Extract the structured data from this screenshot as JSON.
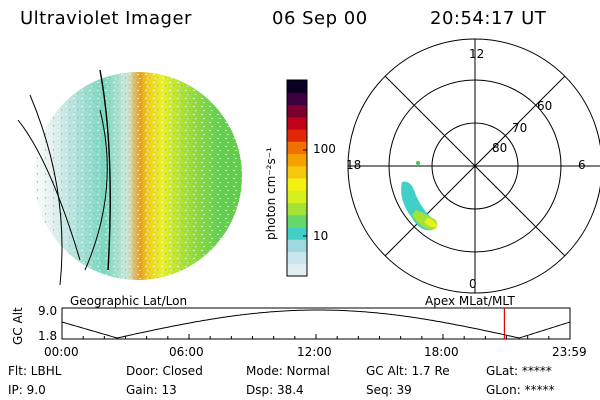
{
  "header": {
    "instrument": "Ultraviolet Imager",
    "date": "06 Sep 00",
    "time": "20:54:17 UT"
  },
  "colorbar": {
    "label": "photon cm⁻²s⁻¹",
    "tick_100": "100",
    "tick_10": "10",
    "colors": [
      "#e0eef2",
      "#c8e6ee",
      "#9fd8e0",
      "#40d0c8",
      "#66d86a",
      "#a6e236",
      "#d6f01c",
      "#f4f010",
      "#f4c80c",
      "#f4a000",
      "#f07000",
      "#e02808",
      "#c00018",
      "#7a0030",
      "#3c0040",
      "#0a0020"
    ]
  },
  "left_panel": {
    "label": "Geographic Lat/Lon"
  },
  "right_panel": {
    "label": "Apex  MLat/MLT",
    "mlt_12": "12",
    "mlt_18": "18",
    "mlt_6": "6",
    "mlt_0": "0",
    "lat_60": "60",
    "lat_70": "70",
    "lat_80": "80"
  },
  "altitude_plot": {
    "ylabel": "GC Alt",
    "ytick_top": "9.0",
    "ytick_bottom": "1.8",
    "xticks": [
      "00:00",
      "06:00",
      "12:00",
      "18:00",
      "23:59"
    ],
    "current_time_marker_hours": 20.9,
    "marker_color": "#e00000"
  },
  "info": {
    "flt": "Flt: LBHL",
    "ip": "IP:  9.0",
    "door": "Door: Closed",
    "gain": "Gain: 13",
    "mode": "Mode: Normal",
    "dsp": "Dsp:   38.4",
    "gc_alt": "GC Alt: 1.7 Re",
    "seq": "Seq: 39",
    "glat": "GLat: *****",
    "glon": "GLon: *****"
  }
}
